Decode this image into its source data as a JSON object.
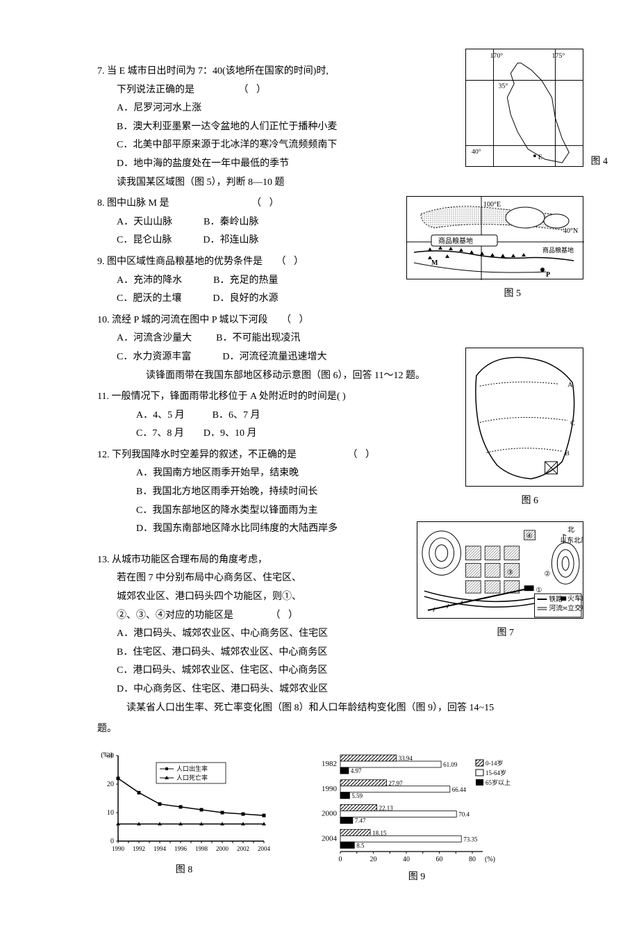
{
  "q7": {
    "stem1": "7.  当 E 城市日出时间为 7：40(该地所在国家的时间)时,",
    "stem2": "下列说法正确的是",
    "bracket": "（        ）",
    "A": "A．尼罗河河水上涨",
    "B": "B．澳大利亚墨累一达令盆地的人们正忙于播种小麦",
    "C": "C．北美中部平原来源于北冰洋的寒冷气流频频南下",
    "D": "D．地中海的盐度处在一年中最低的季节",
    "note": "读我国某区域图（图 5），判断 8—10 题"
  },
  "q8": {
    "stem": "8.  图中山脉 M 是",
    "bracket": "（       ）",
    "A": "A．天山山脉",
    "B": "B．秦岭山脉",
    "C": "C．昆仑山脉",
    "D": "D．祁连山脉"
  },
  "q9": {
    "stem": "9.  图中区域性商品粮基地的优势条件是",
    "bracket": "（       ）",
    "A": "A．充沛的降水",
    "B": "B．充足的热量",
    "C": "C．肥沃的土壤",
    "D": "D．良好的水源"
  },
  "q10": {
    "stem": "10.  流经 P 城的河流在图中 P 城以下河段",
    "bracket": "（       ）",
    "A": "A．河流含沙量大",
    "B": "B．不可能出现凌汛",
    "C": "C．水力资源丰富",
    "D": "D．河流径流量迅速增大",
    "note": "读锋面雨带在我国东部地区移动示意图（图 6），回答 11～12 题。"
  },
  "q11": {
    "stem": "11.  一般情况下，锋面雨带北移位于 A 处附近时的时间是(        )",
    "A": "A．4、5 月",
    "B": "B．6、7 月",
    "C": "C．7、8 月",
    "D": "D．9、10 月"
  },
  "q12": {
    "stem": "12.  下列我国降水时空差异的叙述，不正确的是",
    "bracket": "（        ）",
    "A": "A．我国南方地区雨季开始早，结束晚",
    "B": "B．我国北方地区雨季开始晚，持续时间长",
    "C": "C．我国东部地区的降水类型以锋面雨为主",
    "D": "D．我国东南部地区降水比同纬度的大陆西岸多"
  },
  "q13": {
    "stem1": "13.  从城市功能区合理布局的角度考虑，",
    "stem2": "若在图 7 中分别布局中心商务区、住宅区、",
    "stem3": "城郊农业区、港口码头四个功能区，则①、",
    "stem4": "②、③、④对应的功能区是",
    "bracket": "（        ）",
    "A": "A．港口码头、城郊农业区、中心商务区、住宅区",
    "B": "B．住宅区、港口码头、城郊农业区、中心商务区",
    "C": "C．港口码头、城郊农业区、住宅区、中心商务区",
    "D": "D．中心商务区、住宅区、港口码头、城郊农业区",
    "note": "读某省人口出生率、死亡率变化图（图 8）和人口年龄结构变化图（图 9），回答 14~15"
  },
  "note_end": "题。",
  "fig4": {
    "label": "图 4",
    "lon170": "170°",
    "lon175": "175°",
    "lat35": "35°",
    "lat40": "40°",
    "E": "E"
  },
  "fig5": {
    "label": "图 5",
    "lon100": "100°E",
    "lat40": "40°N",
    "text1": "商品粮基地",
    "text2": "商品粮基地",
    "M": "M",
    "P": "P"
  },
  "fig6": {
    "label": "图 6",
    "A": "A",
    "B": "B",
    "C": "C"
  },
  "fig7": {
    "label": "图 7",
    "north": "北",
    "wind": "以东北风为主",
    "legend_rail": "铁路",
    "legend_station": "火车站",
    "legend_river": "河流",
    "legend_bridge": "立交桥",
    "n1": "①",
    "n2": "②",
    "n3": "③",
    "n4": "④"
  },
  "fig8": {
    "label": "图 8",
    "ylabel": "(‰)",
    "legend_birth": "人口出生率",
    "legend_death": "人口死亡率",
    "yticks": [
      0,
      10,
      20,
      30
    ],
    "xticks": [
      "1990",
      "1992",
      "1994",
      "1996",
      "1998",
      "2000",
      "2002",
      "2004"
    ],
    "birth_values": [
      22,
      17,
      13,
      12,
      11,
      10,
      9.5,
      9
    ],
    "death_values": [
      6,
      6,
      6,
      6,
      6,
      6,
      6,
      6
    ],
    "line_color": "#000000",
    "background_color": "#ffffff"
  },
  "fig9": {
    "label": "图 9",
    "years": [
      "1982",
      "1990",
      "2000",
      "2004"
    ],
    "age_0_14": [
      33.94,
      27.97,
      22.13,
      18.15
    ],
    "age_15_64": [
      61.09,
      66.44,
      70.4,
      73.35
    ],
    "age_65": [
      4.97,
      5.59,
      7.47,
      8.5
    ],
    "xticks": [
      0,
      20,
      40,
      60,
      80
    ],
    "xlabel": "(%)",
    "legend_0_14": "0-14岁",
    "legend_15_64": "15-64岁",
    "legend_65": "65岁以上",
    "fill_0_14": "hatch",
    "fill_15_64": "#ffffff",
    "fill_65": "#000000"
  }
}
